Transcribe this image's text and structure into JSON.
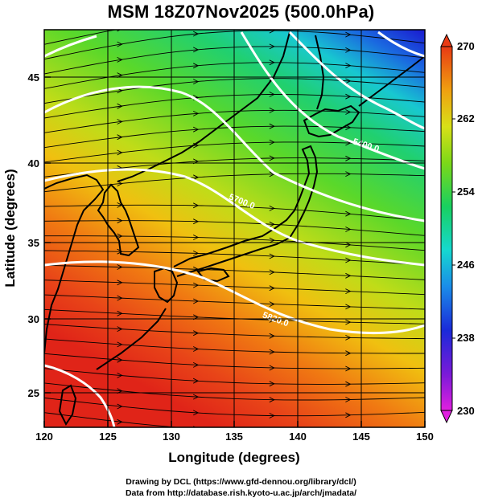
{
  "title": "MSM 18Z07Nov2025 (500.0hPa)",
  "x_axis": {
    "label": "Longitude (degrees)",
    "range": [
      120,
      150
    ],
    "ticks": [
      "120",
      "125",
      "130",
      "135",
      "140",
      "145",
      "150"
    ]
  },
  "y_axis": {
    "label": "Latitude  (degrees)",
    "range": [
      22.5,
      47.6
    ],
    "ticks": [
      "25",
      "30",
      "35",
      "40",
      "45"
    ]
  },
  "colorbar": {
    "range": [
      230,
      270
    ],
    "ticks": [
      "230",
      "238",
      "246",
      "254",
      "262",
      "270"
    ],
    "colors": [
      "#e020e0",
      "#7a1ad8",
      "#1a2ad8",
      "#1a8ce8",
      "#16d8d0",
      "#18d060",
      "#7cd818",
      "#d8e018",
      "#f0a010",
      "#e83a14"
    ]
  },
  "contours": [
    {
      "label": "5400.0",
      "color": "#ffffff"
    },
    {
      "label": "5700.0",
      "color": "#ffffff"
    },
    {
      "label": "5820.0",
      "color": "#ffffff"
    }
  ],
  "credits": {
    "line1": "Drawing by DCL (https://www.gfd-dennou.org/library/dcl/)",
    "line2": "Data from http://database.rish.kyoto-u.ac.jp/arch/jmadata/"
  }
}
